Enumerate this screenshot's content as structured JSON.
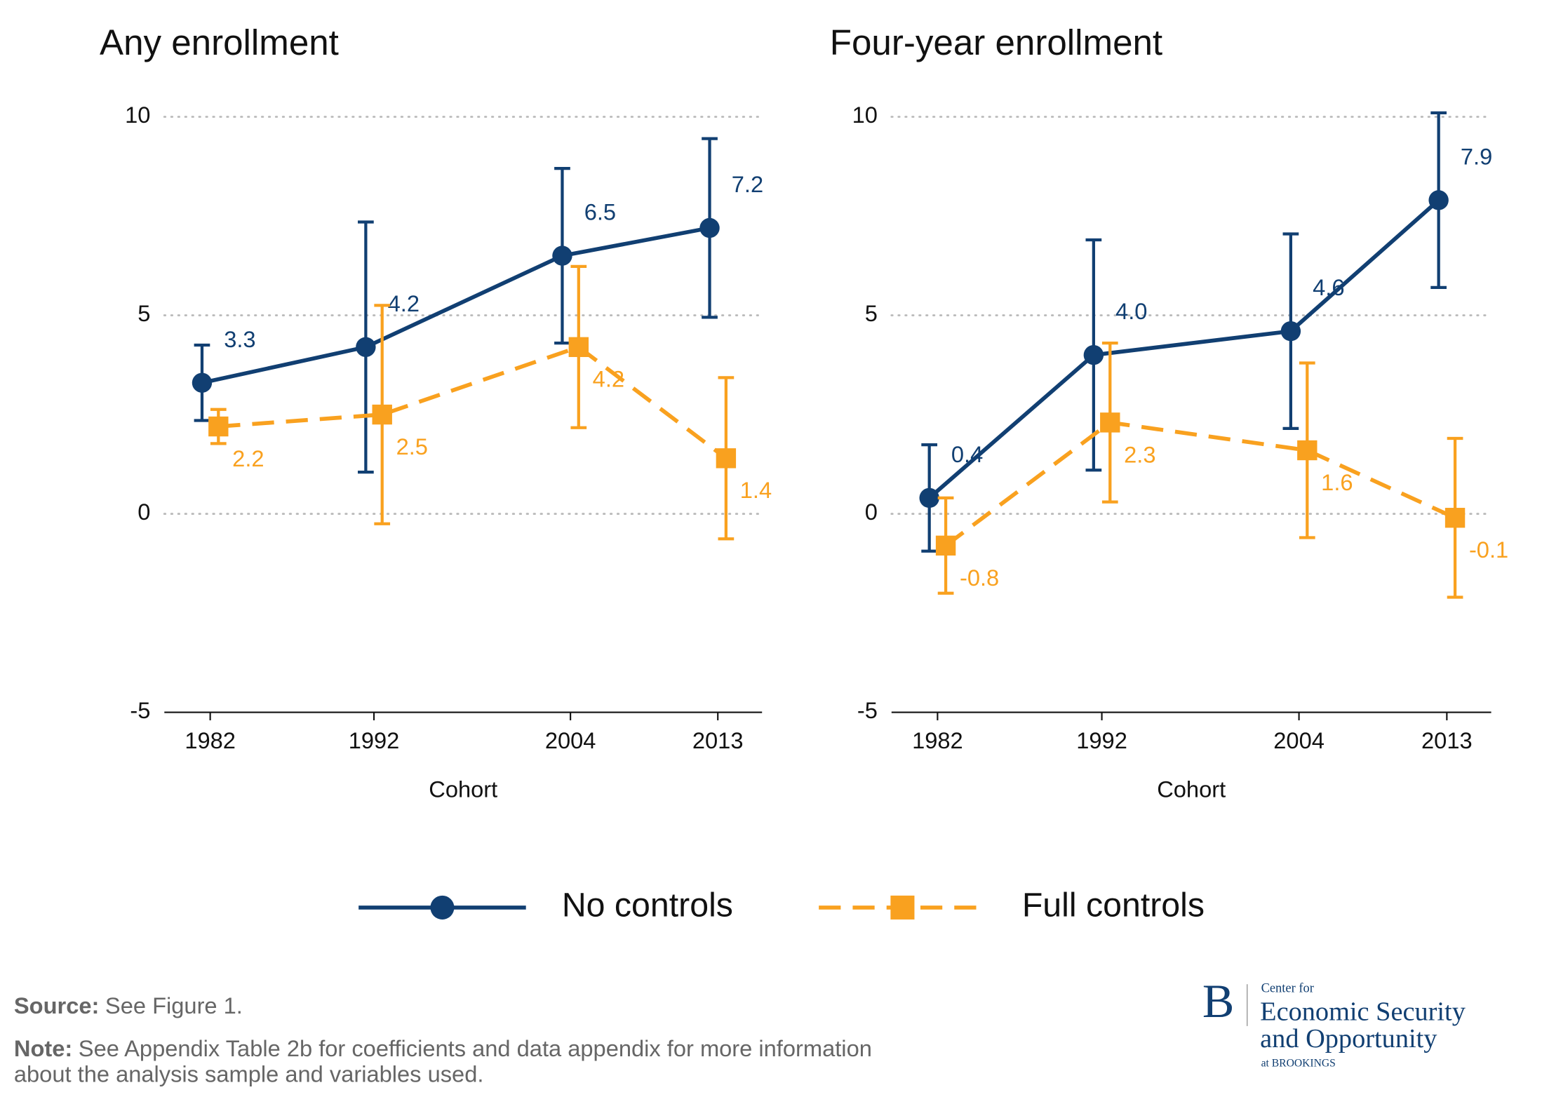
{
  "chart_data": [
    {
      "type": "line",
      "title": "Any enrollment",
      "xlabel": "Cohort",
      "x": [
        1982,
        1992,
        2004,
        2013
      ],
      "xlim": [
        1979.2,
        2015.7
      ],
      "xticks": [
        1982,
        1992,
        2004,
        2013
      ],
      "ylim": [
        -5,
        10
      ],
      "yticks": [
        -5,
        0,
        5,
        10
      ],
      "grid": true,
      "series": [
        {
          "name": "No controls",
          "color": "#113f72",
          "marker": "circle",
          "linestyle": "solid",
          "values": [
            3.3,
            4.2,
            6.5,
            7.2
          ],
          "value_labels": [
            "3.3",
            "4.2",
            "6.5",
            "7.2"
          ],
          "errors": [
            0.95,
            3.15,
            2.2,
            2.25
          ]
        },
        {
          "name": "Full controls",
          "color": "#f9a11f",
          "marker": "square",
          "linestyle": "dashed",
          "values": [
            2.2,
            2.5,
            4.2,
            1.4
          ],
          "value_labels": [
            "2.2",
            "2.5",
            "4.2",
            "1.4"
          ],
          "errors": [
            0.43,
            2.75,
            2.03,
            2.03
          ]
        }
      ]
    },
    {
      "type": "line",
      "title": "Four-year enrollment",
      "xlabel": "Cohort",
      "x": [
        1982,
        1992,
        2004,
        2013
      ],
      "xlim": [
        1979.2,
        2015.7
      ],
      "xticks": [
        1982,
        1992,
        2004,
        2013
      ],
      "ylim": [
        -5,
        10
      ],
      "yticks": [
        -5,
        0,
        5,
        10
      ],
      "grid": true,
      "series": [
        {
          "name": "No controls",
          "color": "#113f72",
          "marker": "circle",
          "linestyle": "solid",
          "values": [
            0.4,
            4.0,
            4.6,
            7.9
          ],
          "value_labels": [
            "0.4",
            "4.0",
            "4.6",
            "7.9"
          ],
          "errors": [
            1.34,
            2.9,
            2.45,
            2.2
          ]
        },
        {
          "name": "Full controls",
          "color": "#f9a11f",
          "marker": "square",
          "linestyle": "dashed",
          "values": [
            -0.8,
            2.3,
            1.6,
            -0.1
          ],
          "value_labels": [
            "-0.8",
            "2.3",
            "1.6",
            "-0.1"
          ],
          "errors": [
            1.2,
            2.0,
            2.2,
            2.0
          ]
        }
      ]
    }
  ],
  "footer": {
    "source_label": "Source:",
    "source_text": "See Figure 1.",
    "note_label": "Note:",
    "note_lines": [
      "See Appendix Table 2b for coefficients and data appendix for more information",
      "about the analysis sample and variables used."
    ]
  },
  "logo": {
    "letter": "B",
    "line1": "Center for",
    "line2": "Economic Security",
    "line3": "and Opportunity",
    "line4": "at BROOKINGS"
  }
}
